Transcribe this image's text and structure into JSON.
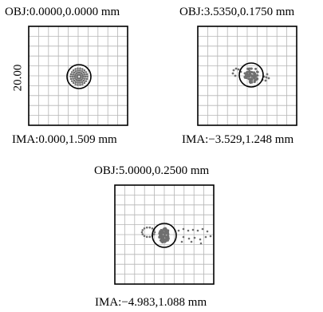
{
  "panels": [
    {
      "id": "p1",
      "obj_label": "OBJ:0.0000,0.0000 mm",
      "ima_label": "IMA:0.000,1.509 mm",
      "scale_label": "20.00",
      "spot_spread": "compact-ring",
      "airy_circle": true
    },
    {
      "id": "p2",
      "obj_label": "OBJ:3.5350,0.1750 mm",
      "ima_label": "IMA:−3.529,1.248 mm",
      "spot_spread": "moderate-coma",
      "airy_circle": true
    },
    {
      "id": "p3",
      "obj_label": "OBJ:5.0000,0.2500 mm",
      "ima_label": "IMA:−4.983,1.088 mm",
      "spot_spread": "wide-coma",
      "airy_circle": true
    }
  ],
  "colors": {
    "grid": "#b5b5b5",
    "frame": "#000000",
    "spot": "#6f6f6f",
    "circle": "#000000"
  }
}
